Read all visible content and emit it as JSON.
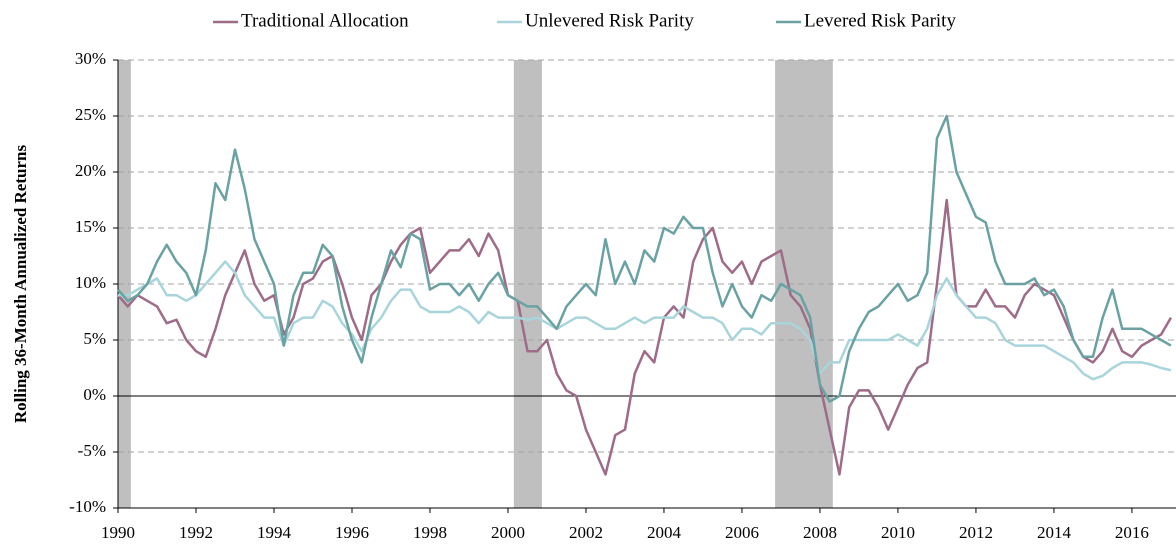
{
  "chart_data": {
    "type": "line",
    "y_label": "Rolling 36-Month Annualized Returns",
    "xlim": [
      1990,
      2017.13
    ],
    "xticks": [
      1990,
      1992,
      1994,
      1996,
      1998,
      2000,
      2002,
      2004,
      2006,
      2008,
      2010,
      2012,
      2014,
      2016
    ],
    "ylim": [
      -10,
      30
    ],
    "yticks": [
      {
        "value": -10,
        "label": "-10%"
      },
      {
        "value": -5,
        "label": "-5%"
      },
      {
        "value": 0,
        "label": "0%"
      },
      {
        "value": 5,
        "label": "5%"
      },
      {
        "value": 10,
        "label": "10%"
      },
      {
        "value": 15,
        "label": "15%"
      },
      {
        "value": 20,
        "label": "20%"
      },
      {
        "value": 25,
        "label": "25%"
      },
      {
        "value": 30,
        "label": "30%"
      }
    ],
    "grid": true,
    "legend": "top",
    "shaded_regions": [
      [
        1990.0,
        1990.33
      ],
      [
        2000.15,
        2000.87
      ],
      [
        2006.85,
        2008.33
      ]
    ],
    "shade_color": "#bfbfbf",
    "x": [
      1990,
      1990.25,
      1990.5,
      1990.75,
      1991,
      1991.25,
      1991.5,
      1991.75,
      1992,
      1992.25,
      1992.5,
      1992.75,
      1993,
      1993.25,
      1993.5,
      1993.75,
      1994,
      1994.25,
      1994.5,
      1994.75,
      1995,
      1995.25,
      1995.5,
      1995.75,
      1996,
      1996.25,
      1996.5,
      1996.75,
      1997,
      1997.25,
      1997.5,
      1997.75,
      1998,
      1998.25,
      1998.5,
      1998.75,
      1999,
      1999.25,
      1999.5,
      1999.75,
      2000,
      2000.25,
      2000.5,
      2000.75,
      2001,
      2001.25,
      2001.5,
      2001.75,
      2002,
      2002.25,
      2002.5,
      2002.75,
      2003,
      2003.25,
      2003.5,
      2003.75,
      2004,
      2004.25,
      2004.5,
      2004.75,
      2005,
      2005.25,
      2005.5,
      2005.75,
      2006,
      2006.25,
      2006.5,
      2006.75,
      2007,
      2007.25,
      2007.5,
      2007.75,
      2008,
      2008.25,
      2008.5,
      2008.75,
      2009,
      2009.25,
      2009.5,
      2009.75,
      2010,
      2010.25,
      2010.5,
      2010.75,
      2011,
      2011.25,
      2011.5,
      2011.75,
      2012,
      2012.25,
      2012.5,
      2012.75,
      2013,
      2013.25,
      2013.5,
      2013.75,
      2014,
      2014.25,
      2014.5,
      2014.75,
      2015,
      2015.25,
      2015.5,
      2015.75,
      2016,
      2016.25,
      2016.5,
      2016.75,
      2017
    ],
    "series": [
      {
        "name": "Traditional Allocation",
        "color": "#9e6b88",
        "values": [
          9,
          8,
          9,
          8.5,
          8,
          6.5,
          6.8,
          5,
          4,
          3.5,
          6,
          9,
          11,
          13,
          10,
          8.5,
          9,
          5.5,
          7,
          10,
          10.5,
          12,
          12.5,
          10,
          7,
          5,
          9,
          10,
          12,
          13.5,
          14.5,
          15,
          11,
          12,
          13,
          13,
          14,
          12.5,
          14.5,
          13,
          9,
          8.5,
          4,
          4,
          5,
          2,
          0.5,
          0,
          -3,
          -5,
          -7,
          -3.5,
          -3,
          2,
          4,
          3,
          7,
          8,
          7,
          12,
          14,
          15,
          12,
          11,
          12,
          10,
          12,
          12.5,
          13,
          9,
          8,
          6,
          1,
          -3,
          -7,
          -1,
          0.5,
          0.5,
          -1,
          -3,
          -1,
          1,
          2.5,
          3,
          10,
          17.5,
          9,
          8,
          8,
          9.5,
          8,
          8,
          7,
          9,
          10,
          9.5,
          9,
          7,
          5,
          3.5,
          3,
          4,
          6,
          4,
          3.5,
          4.5,
          5,
          5.5,
          7
        ]
      },
      {
        "name": "Unlevered Risk Parity",
        "color": "#a8d5dc",
        "values": [
          9,
          9,
          9.5,
          10,
          10.5,
          9,
          9,
          8.5,
          9,
          10,
          11,
          12,
          11,
          9,
          8,
          7,
          7,
          4.5,
          6.5,
          7,
          7,
          8.5,
          8,
          6.5,
          5.5,
          4,
          6,
          7,
          8.5,
          9.5,
          9.5,
          8,
          7.5,
          7.5,
          7.5,
          8,
          7.5,
          6.5,
          7.5,
          7,
          7,
          7,
          6.8,
          7,
          6.5,
          6,
          6.5,
          7,
          7,
          6.5,
          6,
          6,
          6.5,
          7,
          6.5,
          7,
          7,
          7,
          8,
          7.5,
          7,
          7,
          6.5,
          5,
          6,
          6,
          5.5,
          6.5,
          6.5,
          6.5,
          6,
          5,
          2,
          3,
          3,
          5,
          5,
          5,
          5,
          5,
          5.5,
          5,
          4.5,
          6,
          9,
          10.5,
          9,
          8,
          7,
          7,
          6.5,
          5,
          4.5,
          4.5,
          4.5,
          4.5,
          4,
          3.5,
          3,
          2,
          1.5,
          1.8,
          2.5,
          3,
          3,
          3,
          2.8,
          2.5,
          2.3
        ]
      },
      {
        "name": "Levered Risk Parity",
        "color": "#6aa2a4",
        "values": [
          9.5,
          8.5,
          9,
          10,
          12,
          13.5,
          12,
          11,
          9,
          13,
          19,
          17.5,
          22,
          18.5,
          14,
          12,
          10,
          4.5,
          9,
          11,
          11,
          13.5,
          12.5,
          8,
          5,
          3,
          7,
          10,
          13,
          11.5,
          14.5,
          14,
          9.5,
          10,
          10,
          9,
          10,
          8.5,
          10,
          11,
          9,
          8.5,
          8,
          8,
          7,
          6,
          8,
          9,
          10,
          9,
          14,
          10,
          12,
          10,
          13,
          12,
          15,
          14.5,
          16,
          15,
          15,
          11,
          8,
          10,
          8,
          7,
          9,
          8.5,
          10,
          9.5,
          9,
          7,
          1,
          -0.5,
          0,
          4,
          6,
          7.5,
          8,
          9,
          10,
          8.5,
          9,
          11,
          23,
          25,
          20,
          18,
          16,
          15.5,
          12,
          10,
          10,
          10,
          10.5,
          9,
          9.5,
          8,
          5,
          3.5,
          3.5,
          7,
          9.5,
          6,
          6,
          6,
          5.5,
          5,
          4.5
        ]
      }
    ]
  }
}
